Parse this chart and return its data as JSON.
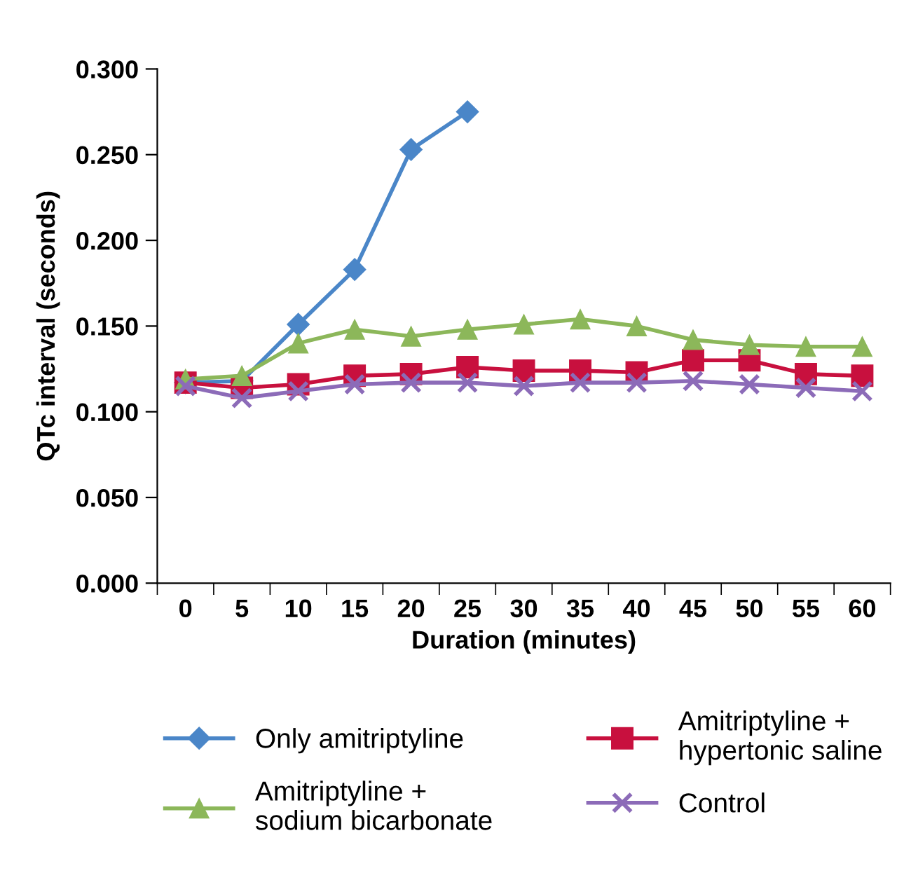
{
  "chart_data": {
    "type": "line",
    "xlabel": "Duration (minutes)",
    "ylabel": "QTc interval (seconds)",
    "categories": [
      "0",
      "5",
      "10",
      "15",
      "20",
      "25",
      "30",
      "35",
      "40",
      "45",
      "50",
      "55",
      "60"
    ],
    "series": [
      {
        "name": "Only amitriptyline",
        "color": "#4a86c8",
        "marker": "diamond",
        "values": [
          0.117,
          0.118,
          0.151,
          0.183,
          0.253,
          0.275,
          null,
          null,
          null,
          null,
          null,
          null,
          null
        ]
      },
      {
        "name": "Amitriptyline +\nhypertonic saline",
        "color": "#c8103e",
        "marker": "square",
        "values": [
          0.117,
          0.114,
          0.116,
          0.121,
          0.122,
          0.126,
          0.124,
          0.124,
          0.123,
          0.13,
          0.13,
          0.122,
          0.121
        ]
      },
      {
        "name": "Amitriptyline +\nsodium bicarbonate",
        "color": "#8cb75a",
        "marker": "triangle",
        "values": [
          0.119,
          0.121,
          0.14,
          0.148,
          0.144,
          0.148,
          0.151,
          0.154,
          0.15,
          0.142,
          0.139,
          0.138,
          0.138
        ]
      },
      {
        "name": "Control",
        "color": "#8c6bb8",
        "marker": "cross",
        "values": [
          0.115,
          0.108,
          0.112,
          0.116,
          0.117,
          0.117,
          0.115,
          0.117,
          0.117,
          0.118,
          0.116,
          0.114,
          0.112
        ]
      }
    ],
    "ylim": [
      0,
      0.3
    ],
    "yticks": [
      {
        "value": 0,
        "label": "0.000"
      },
      {
        "value": 0.05,
        "label": "0.050"
      },
      {
        "value": 0.1,
        "label": "0.100"
      },
      {
        "value": 0.15,
        "label": "0.150"
      },
      {
        "value": 0.2,
        "label": "0.200"
      },
      {
        "value": 0.25,
        "label": "0.250"
      },
      {
        "value": 0.3,
        "label": "0.300"
      }
    ],
    "grid": false,
    "legend": "bottom",
    "line_style": "solid"
  }
}
